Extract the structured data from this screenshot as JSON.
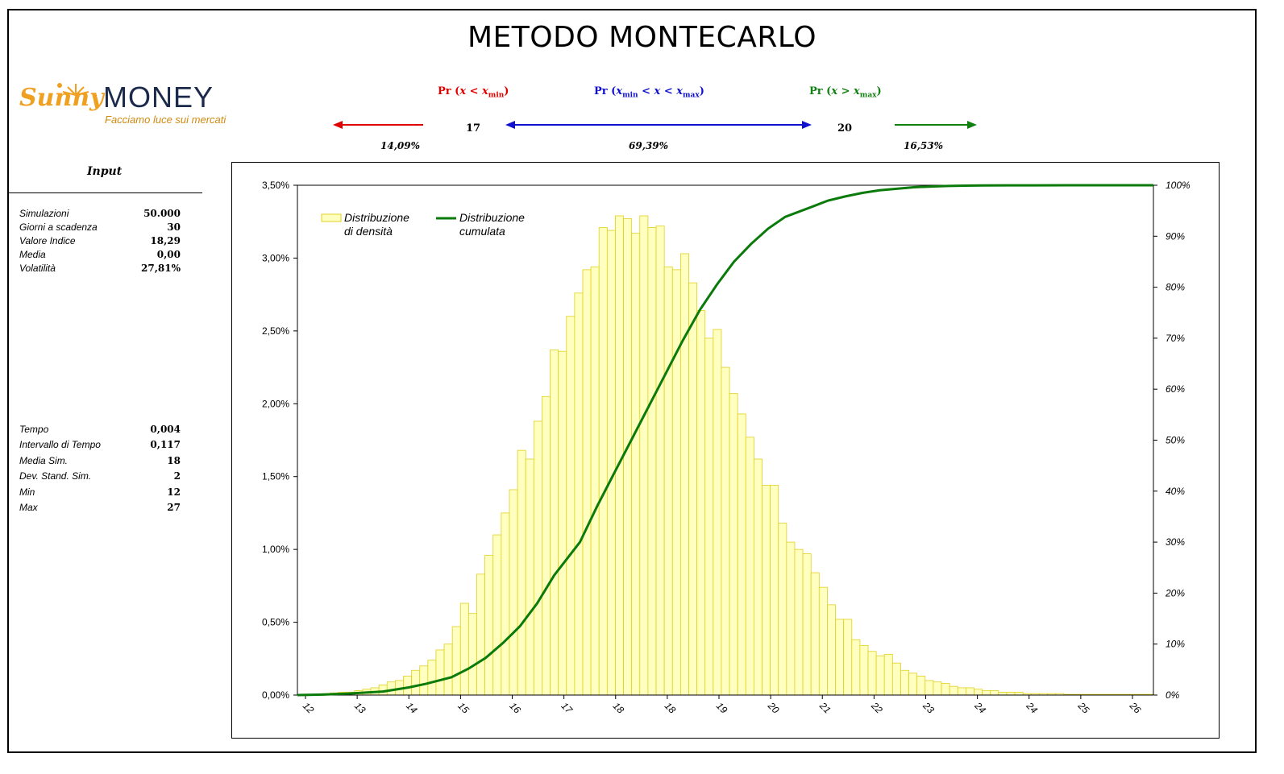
{
  "page": {
    "title": "METODO MONTECARLO"
  },
  "logo": {
    "brand_a": "Sunny",
    "brand_b": "MONEY",
    "tagline": "Facciamo luce sui mercati"
  },
  "probabilities": {
    "lower": {
      "label_pre": "Pr (",
      "var": "x",
      "op": " < ",
      "bound_var": "x",
      "bound_sub": "min",
      "label_post": ")",
      "value": "14,09%"
    },
    "middle": {
      "label_pre": "Pr (",
      "lvar": "x",
      "lsub": "min",
      "op1": " < ",
      "var": "x",
      "op2": " < ",
      "rvar": "x",
      "rsub": "max",
      "label_post": ")",
      "value": "69,39%"
    },
    "upper": {
      "label_pre": "Pr (",
      "var": "x",
      "op": " > ",
      "bound_var": "x",
      "bound_sub": "max",
      "label_post": ")",
      "value": "16,53%"
    },
    "xmin": "17",
    "xmax": "20"
  },
  "input": {
    "title": "Input",
    "rows_top": [
      {
        "label": "Simulazioni",
        "value": "50.000"
      },
      {
        "label": "Giorni a scadenza",
        "value": "30"
      },
      {
        "label": "Valore Indice",
        "value": "18,29"
      },
      {
        "label": "Media",
        "value": "0,00"
      },
      {
        "label": "Volatilità",
        "value": "27,81%"
      }
    ],
    "rows_bottom": [
      {
        "label": "Tempo",
        "value": "0,004"
      },
      {
        "label": "Intervallo di Tempo",
        "value": "0,117"
      },
      {
        "label": "Media Sim.",
        "value": "18"
      },
      {
        "label": "Dev. Stand. Sim.",
        "value": "2"
      },
      {
        "label": "Min",
        "value": "12"
      },
      {
        "label": "Max",
        "value": "27"
      }
    ]
  },
  "colors": {
    "bar_fill": "#ffffc0",
    "bar_stroke": "#e0d020",
    "cumulative_line": "#0a7a0a",
    "arrow_red": "#e00000",
    "arrow_blue": "#1010d0",
    "arrow_green": "#108010"
  },
  "chart_data": {
    "type": "bar",
    "title": "",
    "legend": {
      "position": "top-left",
      "density_label_1": "Distribuzione",
      "density_label_2": "di densità",
      "cumulative_label_1": "Distribuzione",
      "cumulative_label_2": "cumulata"
    },
    "y_left": {
      "min": 0,
      "max": 3.5,
      "ticks": [
        "0,00%",
        "0,50%",
        "1,00%",
        "1,50%",
        "2,00%",
        "2,50%",
        "3,00%",
        "3,50%"
      ]
    },
    "y_right": {
      "min": 0,
      "max": 100,
      "ticks": [
        "0%",
        "10%",
        "20%",
        "30%",
        "40%",
        "50%",
        "60%",
        "70%",
        "80%",
        "90%",
        "100%"
      ]
    },
    "x_ticks": [
      "12",
      "13",
      "14",
      "15",
      "16",
      "17",
      "18",
      "18",
      "19",
      "20",
      "21",
      "22",
      "23",
      "24",
      "24",
      "25",
      "26"
    ],
    "series": [
      {
        "name": "Distribuzione di densità",
        "axis": "left",
        "values": [
          0,
          0,
          0.005,
          0.01,
          0.015,
          0.02,
          0.02,
          0.03,
          0.04,
          0.05,
          0.07,
          0.09,
          0.1,
          0.13,
          0.17,
          0.2,
          0.24,
          0.31,
          0.35,
          0.47,
          0.63,
          0.56,
          0.83,
          0.96,
          1.1,
          1.25,
          1.41,
          1.68,
          1.62,
          1.88,
          2.05,
          2.37,
          2.36,
          2.6,
          2.76,
          2.92,
          2.94,
          3.21,
          3.19,
          3.29,
          3.27,
          3.17,
          3.29,
          3.21,
          3.22,
          2.94,
          2.92,
          3.03,
          2.83,
          2.64,
          2.45,
          2.51,
          2.25,
          2.07,
          1.93,
          1.77,
          1.62,
          1.44,
          1.44,
          1.18,
          1.05,
          1.0,
          0.97,
          0.84,
          0.74,
          0.62,
          0.52,
          0.52,
          0.38,
          0.34,
          0.3,
          0.27,
          0.28,
          0.22,
          0.17,
          0.15,
          0.13,
          0.1,
          0.09,
          0.08,
          0.06,
          0.05,
          0.05,
          0.04,
          0.03,
          0.03,
          0.02,
          0.02,
          0.02,
          0.01,
          0.01,
          0.01,
          0.01,
          0.01,
          0.005,
          0.005,
          0.005,
          0.005,
          0.005,
          0.005,
          0.005,
          0.005,
          0.005,
          0.005,
          0.005
        ]
      },
      {
        "name": "Distribuzione cumulata",
        "axis": "right",
        "x_frac": [
          0,
          0.03,
          0.06,
          0.1,
          0.13,
          0.15,
          0.18,
          0.2,
          0.22,
          0.24,
          0.26,
          0.28,
          0.3,
          0.33,
          0.35,
          0.37,
          0.39,
          0.41,
          0.43,
          0.45,
          0.47,
          0.49,
          0.51,
          0.53,
          0.55,
          0.57,
          0.6,
          0.62,
          0.64,
          0.66,
          0.68,
          0.7,
          0.72,
          0.74,
          0.76,
          0.78,
          0.8,
          0.83,
          0.86,
          0.9,
          0.94,
          1.0
        ],
        "values": [
          0,
          0.1,
          0.3,
          0.7,
          1.5,
          2.2,
          3.5,
          5.2,
          7.3,
          10.2,
          13.5,
          18,
          23.5,
          30,
          37,
          43.5,
          50,
          56.5,
          63,
          69.5,
          75.5,
          80.5,
          85,
          88.5,
          91.5,
          93.8,
          95.7,
          97,
          97.8,
          98.5,
          99,
          99.3,
          99.6,
          99.75,
          99.85,
          99.92,
          99.96,
          99.98,
          99.99,
          100,
          100,
          100
        ]
      }
    ]
  }
}
